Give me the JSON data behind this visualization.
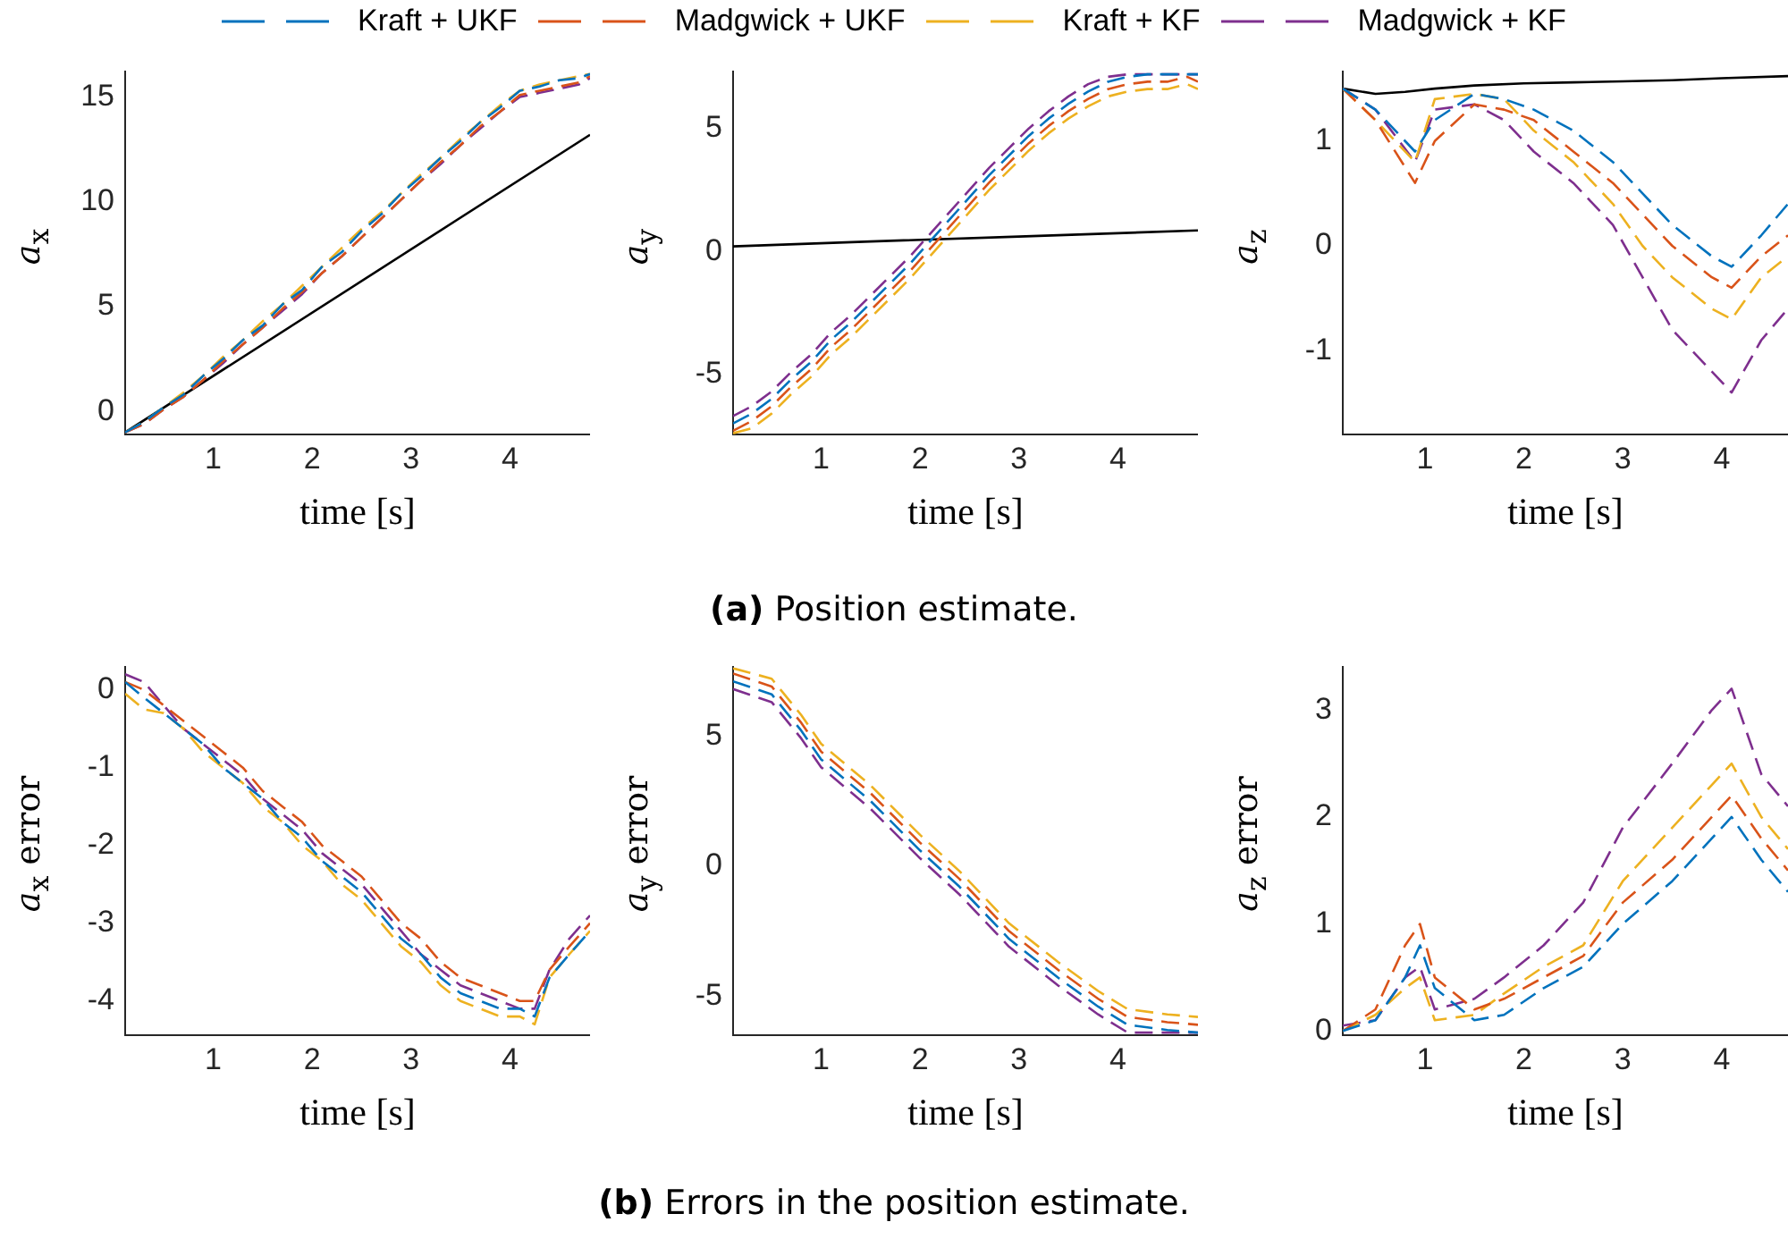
{
  "chart_data": [
    {
      "type": "line",
      "xlabel": "time [s]",
      "ylabel": "a$_{x}$",
      "legend": "top",
      "line_style": "dashed",
      "xlim": [
        0.11,
        4.81
      ],
      "xticks": [
        1,
        2,
        3,
        4
      ],
      "ylim": [
        -1.1,
        16.2
      ],
      "yticks": [
        0,
        5,
        10,
        15
      ],
      "x": [
        0.11,
        0.3,
        0.5,
        0.7,
        0.9,
        1.1,
        1.3,
        1.5,
        1.7,
        1.9,
        2.1,
        2.3,
        2.5,
        2.7,
        2.9,
        3.1,
        3.3,
        3.5,
        3.7,
        3.9,
        4.1,
        4.3,
        4.5,
        4.7,
        4.81
      ],
      "series": [
        {
          "name": "Kraft + UKF",
          "color": "#0072bd",
          "values": [
            -1,
            -0.5,
            0.2,
            0.8,
            1.7,
            2.5,
            3.4,
            4.1,
            5.1,
            5.8,
            6.9,
            7.6,
            8.6,
            9.4,
            10.4,
            11.2,
            12.1,
            12.9,
            13.8,
            14.5,
            15.3,
            15.5,
            15.8,
            15.9,
            16.1
          ]
        },
        {
          "name": "Madgwick + UKF",
          "color": "#d95319",
          "values": [
            -1,
            -0.6,
            0.1,
            0.7,
            1.5,
            2.4,
            3.2,
            4.0,
            4.9,
            5.7,
            6.6,
            7.4,
            8.3,
            9.2,
            10.1,
            11.0,
            11.9,
            12.7,
            13.6,
            14.3,
            15.1,
            15.3,
            15.5,
            15.7,
            16.0
          ]
        },
        {
          "name": "Kraft + KF",
          "color": "#edb120",
          "values": [
            -1,
            -0.5,
            0.2,
            0.9,
            1.7,
            2.6,
            3.4,
            4.3,
            5.1,
            6.0,
            6.9,
            7.8,
            8.7,
            9.5,
            10.4,
            11.3,
            12.1,
            13.0,
            13.8,
            14.6,
            15.3,
            15.6,
            15.8,
            16.0,
            16.1
          ]
        },
        {
          "name": "Madgwick + KF",
          "color": "#7e2f8e",
          "values": [
            -1,
            -0.6,
            0.1,
            0.7,
            1.5,
            2.3,
            3.2,
            4.0,
            4.8,
            5.6,
            6.6,
            7.4,
            8.3,
            9.2,
            10.1,
            11.0,
            11.8,
            12.7,
            13.5,
            14.3,
            15.0,
            15.2,
            15.4,
            15.6,
            15.9
          ]
        },
        {
          "color": "#000000",
          "line_style": "solid",
          "x": [
            0.11,
            4.81
          ],
          "values": [
            -1,
            13.2
          ]
        }
      ]
    },
    {
      "type": "line",
      "xlabel": "time [s]",
      "ylabel": "a$_{y}$",
      "line_style": "dashed",
      "xlim": [
        0.11,
        4.81
      ],
      "xticks": [
        1,
        2,
        3,
        4
      ],
      "ylim": [
        -7.45,
        7.3
      ],
      "yticks": [
        -5,
        0,
        5
      ],
      "annotations": [
        "(a) Position estimate."
      ],
      "x": [
        0.11,
        0.3,
        0.5,
        0.7,
        0.9,
        1.1,
        1.3,
        1.5,
        1.7,
        1.9,
        2.1,
        2.3,
        2.5,
        2.7,
        2.9,
        3.1,
        3.3,
        3.5,
        3.7,
        3.9,
        4.1,
        4.3,
        4.5,
        4.7,
        4.81
      ],
      "series": [
        {
          "color": "#0072bd",
          "values": [
            -7.0,
            -6.6,
            -6.0,
            -5.2,
            -4.5,
            -3.6,
            -2.9,
            -2.1,
            -1.3,
            -0.5,
            0.4,
            1.3,
            2.2,
            3.1,
            3.9,
            4.7,
            5.4,
            6.0,
            6.5,
            6.9,
            7.1,
            7.2,
            7.2,
            7.2,
            7.2
          ]
        },
        {
          "color": "#d95319",
          "values": [
            -7.3,
            -6.9,
            -6.3,
            -5.5,
            -4.8,
            -3.9,
            -3.2,
            -2.4,
            -1.6,
            -0.8,
            0.1,
            1.0,
            1.9,
            2.8,
            3.6,
            4.4,
            5.1,
            5.7,
            6.2,
            6.6,
            6.8,
            6.9,
            6.9,
            7.1,
            6.9
          ]
        },
        {
          "color": "#edb120",
          "values": [
            -7.4,
            -7.2,
            -6.6,
            -5.8,
            -5.1,
            -4.2,
            -3.5,
            -2.7,
            -1.9,
            -1.1,
            -0.2,
            0.7,
            1.6,
            2.5,
            3.3,
            4.1,
            4.8,
            5.4,
            5.9,
            6.3,
            6.5,
            6.6,
            6.6,
            6.8,
            6.6
          ]
        },
        {
          "color": "#7e2f8e",
          "values": [
            -6.7,
            -6.3,
            -5.7,
            -4.9,
            -4.2,
            -3.3,
            -2.6,
            -1.8,
            -1.0,
            -0.2,
            0.7,
            1.6,
            2.5,
            3.4,
            4.2,
            5.0,
            5.7,
            6.3,
            6.8,
            7.1,
            7.2,
            7.2,
            7.2,
            7.2,
            7.2
          ]
        },
        {
          "color": "#000000",
          "line_style": "solid",
          "x": [
            0.11,
            1.5,
            3,
            4.81
          ],
          "values": [
            0.2,
            0.4,
            0.6,
            0.85
          ]
        }
      ]
    },
    {
      "type": "line",
      "xlabel": "time [s]",
      "ylabel": "a$_{z}$",
      "line_style": "dashed",
      "xlim": [
        0.17,
        4.67
      ],
      "xticks": [
        1,
        2,
        3,
        4
      ],
      "ylim": [
        -1.8,
        1.66
      ],
      "yticks": [
        -1,
        0,
        1
      ],
      "x": [
        0.17,
        0.5,
        0.9,
        1.1,
        1.5,
        1.8,
        2.1,
        2.5,
        2.9,
        3.2,
        3.5,
        3.9,
        4.1,
        4.4,
        4.67
      ],
      "series": [
        {
          "color": "#0072bd",
          "values": [
            1.5,
            1.3,
            0.9,
            1.2,
            1.45,
            1.4,
            1.3,
            1.1,
            0.8,
            0.5,
            0.2,
            -0.1,
            -0.2,
            0.1,
            0.4
          ]
        },
        {
          "color": "#d95319",
          "values": [
            1.5,
            1.2,
            0.6,
            1.0,
            1.35,
            1.3,
            1.2,
            0.9,
            0.6,
            0.3,
            0.0,
            -0.3,
            -0.4,
            -0.1,
            0.1
          ]
        },
        {
          "color": "#edb120",
          "values": [
            1.5,
            1.2,
            0.8,
            1.4,
            1.45,
            1.4,
            1.1,
            0.8,
            0.4,
            0.0,
            -0.3,
            -0.6,
            -0.7,
            -0.3,
            -0.1
          ]
        },
        {
          "color": "#7e2f8e",
          "values": [
            1.5,
            1.3,
            0.8,
            1.3,
            1.35,
            1.2,
            0.9,
            0.6,
            0.2,
            -0.3,
            -0.8,
            -1.2,
            -1.4,
            -0.9,
            -0.6
          ]
        },
        {
          "color": "#000000",
          "line_style": "solid",
          "x": [
            0.17,
            0.5,
            0.8,
            1.1,
            1.5,
            2,
            2.5,
            3,
            3.5,
            4,
            4.67
          ],
          "values": [
            1.5,
            1.45,
            1.47,
            1.5,
            1.53,
            1.55,
            1.56,
            1.57,
            1.58,
            1.6,
            1.62
          ]
        }
      ]
    },
    {
      "type": "line",
      "xlabel": "time [s]",
      "ylabel": "a$_{x}$ error",
      "line_style": "dashed",
      "xlim": [
        0.11,
        4.81
      ],
      "xticks": [
        1,
        2,
        3,
        4
      ],
      "ylim": [
        -4.44,
        0.29
      ],
      "yticks": [
        -4,
        -3,
        -2,
        -1,
        0
      ],
      "x": [
        0.11,
        0.3,
        0.5,
        0.7,
        0.9,
        1.1,
        1.3,
        1.5,
        1.7,
        1.9,
        2.1,
        2.3,
        2.5,
        2.7,
        2.9,
        3.1,
        3.3,
        3.5,
        3.7,
        3.9,
        4.1,
        4.25,
        4.4,
        4.6,
        4.81
      ],
      "series": [
        {
          "color": "#0072bd",
          "values": [
            0.1,
            -0.1,
            -0.3,
            -0.5,
            -0.7,
            -1.0,
            -1.2,
            -1.4,
            -1.7,
            -1.9,
            -2.2,
            -2.4,
            -2.6,
            -2.9,
            -3.2,
            -3.4,
            -3.7,
            -3.9,
            -4.0,
            -4.1,
            -4.1,
            -4.2,
            -3.7,
            -3.4,
            -3.1
          ]
        },
        {
          "color": "#d95319",
          "values": [
            0.1,
            0.0,
            -0.2,
            -0.4,
            -0.6,
            -0.8,
            -1.0,
            -1.3,
            -1.5,
            -1.7,
            -2.0,
            -2.2,
            -2.4,
            -2.7,
            -3.0,
            -3.2,
            -3.5,
            -3.7,
            -3.8,
            -3.9,
            -4.0,
            -4.0,
            -3.6,
            -3.3,
            -3.0
          ]
        },
        {
          "color": "#edb120",
          "values": [
            -0.05,
            -0.25,
            -0.3,
            -0.5,
            -0.8,
            -1.0,
            -1.2,
            -1.5,
            -1.7,
            -2.0,
            -2.2,
            -2.5,
            -2.7,
            -3.0,
            -3.3,
            -3.5,
            -3.8,
            -4.0,
            -4.1,
            -4.2,
            -4.2,
            -4.3,
            -3.7,
            -3.4,
            -3.1
          ]
        },
        {
          "color": "#7e2f8e",
          "values": [
            0.2,
            0.1,
            -0.2,
            -0.5,
            -0.7,
            -0.9,
            -1.1,
            -1.4,
            -1.6,
            -1.8,
            -2.1,
            -2.3,
            -2.5,
            -2.8,
            -3.1,
            -3.4,
            -3.6,
            -3.8,
            -3.9,
            -4.0,
            -4.1,
            -4.1,
            -3.6,
            -3.2,
            -2.9
          ]
        }
      ]
    },
    {
      "type": "line",
      "xlabel": "time [s]",
      "ylabel": "a$_{y}$ error",
      "line_style": "dashed",
      "xlim": [
        0.11,
        4.81
      ],
      "xticks": [
        1,
        2,
        3,
        4
      ],
      "ylim": [
        -6.5,
        7.64
      ],
      "yticks": [
        -5,
        0,
        5
      ],
      "annotations": [
        "(b) Errors in the position estimate."
      ],
      "x": [
        0.11,
        0.5,
        0.8,
        1.0,
        1.5,
        2.0,
        2.4,
        2.9,
        3.4,
        3.8,
        4.1,
        4.5,
        4.81
      ],
      "series": [
        {
          "color": "#0072bd",
          "values": [
            7.1,
            6.6,
            5.2,
            4.1,
            2.5,
            0.6,
            -0.8,
            -2.8,
            -4.3,
            -5.4,
            -6.1,
            -6.3,
            -6.4
          ]
        },
        {
          "color": "#d95319",
          "values": [
            7.4,
            6.9,
            5.5,
            4.4,
            2.8,
            0.9,
            -0.5,
            -2.5,
            -4.0,
            -5.1,
            -5.8,
            -6.0,
            -6.1
          ]
        },
        {
          "color": "#edb120",
          "values": [
            7.6,
            7.2,
            5.8,
            4.7,
            3.1,
            1.2,
            -0.2,
            -2.2,
            -3.7,
            -4.8,
            -5.5,
            -5.7,
            -5.8
          ]
        },
        {
          "color": "#7e2f8e",
          "values": [
            6.8,
            6.3,
            4.9,
            3.8,
            2.2,
            0.3,
            -1.1,
            -3.1,
            -4.6,
            -5.7,
            -6.4,
            -6.4,
            -6.4
          ]
        }
      ]
    },
    {
      "type": "line",
      "xlabel": "time [s]",
      "ylabel": "a$_{z}$ error",
      "line_style": "dashed",
      "xlim": [
        0.17,
        4.67
      ],
      "xticks": [
        1,
        2,
        3,
        4
      ],
      "ylim": [
        -0.04,
        3.4
      ],
      "yticks": [
        0,
        1,
        2,
        3
      ],
      "x": [
        0.17,
        0.5,
        0.8,
        0.95,
        1.1,
        1.5,
        1.8,
        2.2,
        2.6,
        3.0,
        3.5,
        3.9,
        4.1,
        4.4,
        4.67
      ],
      "series": [
        {
          "color": "#0072bd",
          "values": [
            0,
            0.1,
            0.5,
            0.8,
            0.4,
            0.1,
            0.15,
            0.4,
            0.6,
            1.0,
            1.4,
            1.8,
            2.0,
            1.6,
            1.3
          ]
        },
        {
          "color": "#d95319",
          "values": [
            0,
            0.2,
            0.8,
            1.0,
            0.5,
            0.2,
            0.3,
            0.5,
            0.7,
            1.2,
            1.6,
            2.0,
            2.2,
            1.8,
            1.5
          ]
        },
        {
          "color": "#edb120",
          "values": [
            0,
            0.15,
            0.4,
            0.5,
            0.1,
            0.15,
            0.35,
            0.6,
            0.8,
            1.4,
            1.9,
            2.3,
            2.5,
            2.0,
            1.7
          ]
        },
        {
          "color": "#7e2f8e",
          "values": [
            0.05,
            0.1,
            0.5,
            0.6,
            0.2,
            0.3,
            0.5,
            0.8,
            1.2,
            1.9,
            2.5,
            3.0,
            3.2,
            2.4,
            2.1
          ]
        }
      ]
    }
  ]
}
